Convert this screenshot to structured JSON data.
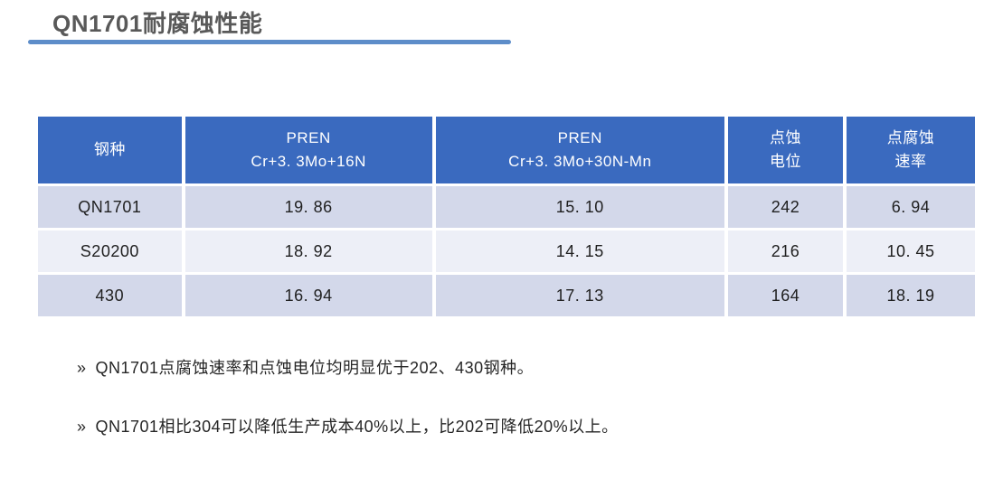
{
  "title": "QN1701耐腐蚀性能",
  "table": {
    "header": [
      {
        "line1": "钢种",
        "line2": ""
      },
      {
        "line1": "PREN",
        "line2": "Cr+3. 3Mo+16N"
      },
      {
        "line1": "PREN",
        "line2": "Cr+3. 3Mo+30N-Mn"
      },
      {
        "line1": "点蚀",
        "line2": "电位"
      },
      {
        "line1": "点腐蚀",
        "line2": "速率"
      }
    ],
    "rows": [
      {
        "cells": [
          "QN1701",
          "19. 86",
          "15. 10",
          "242",
          "6. 94"
        ]
      },
      {
        "cells": [
          "S20200",
          "18. 92",
          "14. 15",
          "216",
          "10. 45"
        ]
      },
      {
        "cells": [
          "430",
          "16. 94",
          "17. 13",
          "164",
          "18. 19"
        ]
      }
    ]
  },
  "notes": {
    "marker": "»",
    "items": [
      "QN1701点腐蚀速率和点蚀电位均明显优于202、430钢种。",
      "QN1701相比304可以降低生产成本40%以上，比202可降低20%以上。"
    ]
  },
  "colors": {
    "header_bg": "#3a6abf",
    "row_dark": "#d3d8ea",
    "row_light": "#edeff7",
    "title_text": "#595959",
    "underline": "#5d8dc9",
    "body_text": "#262626"
  }
}
